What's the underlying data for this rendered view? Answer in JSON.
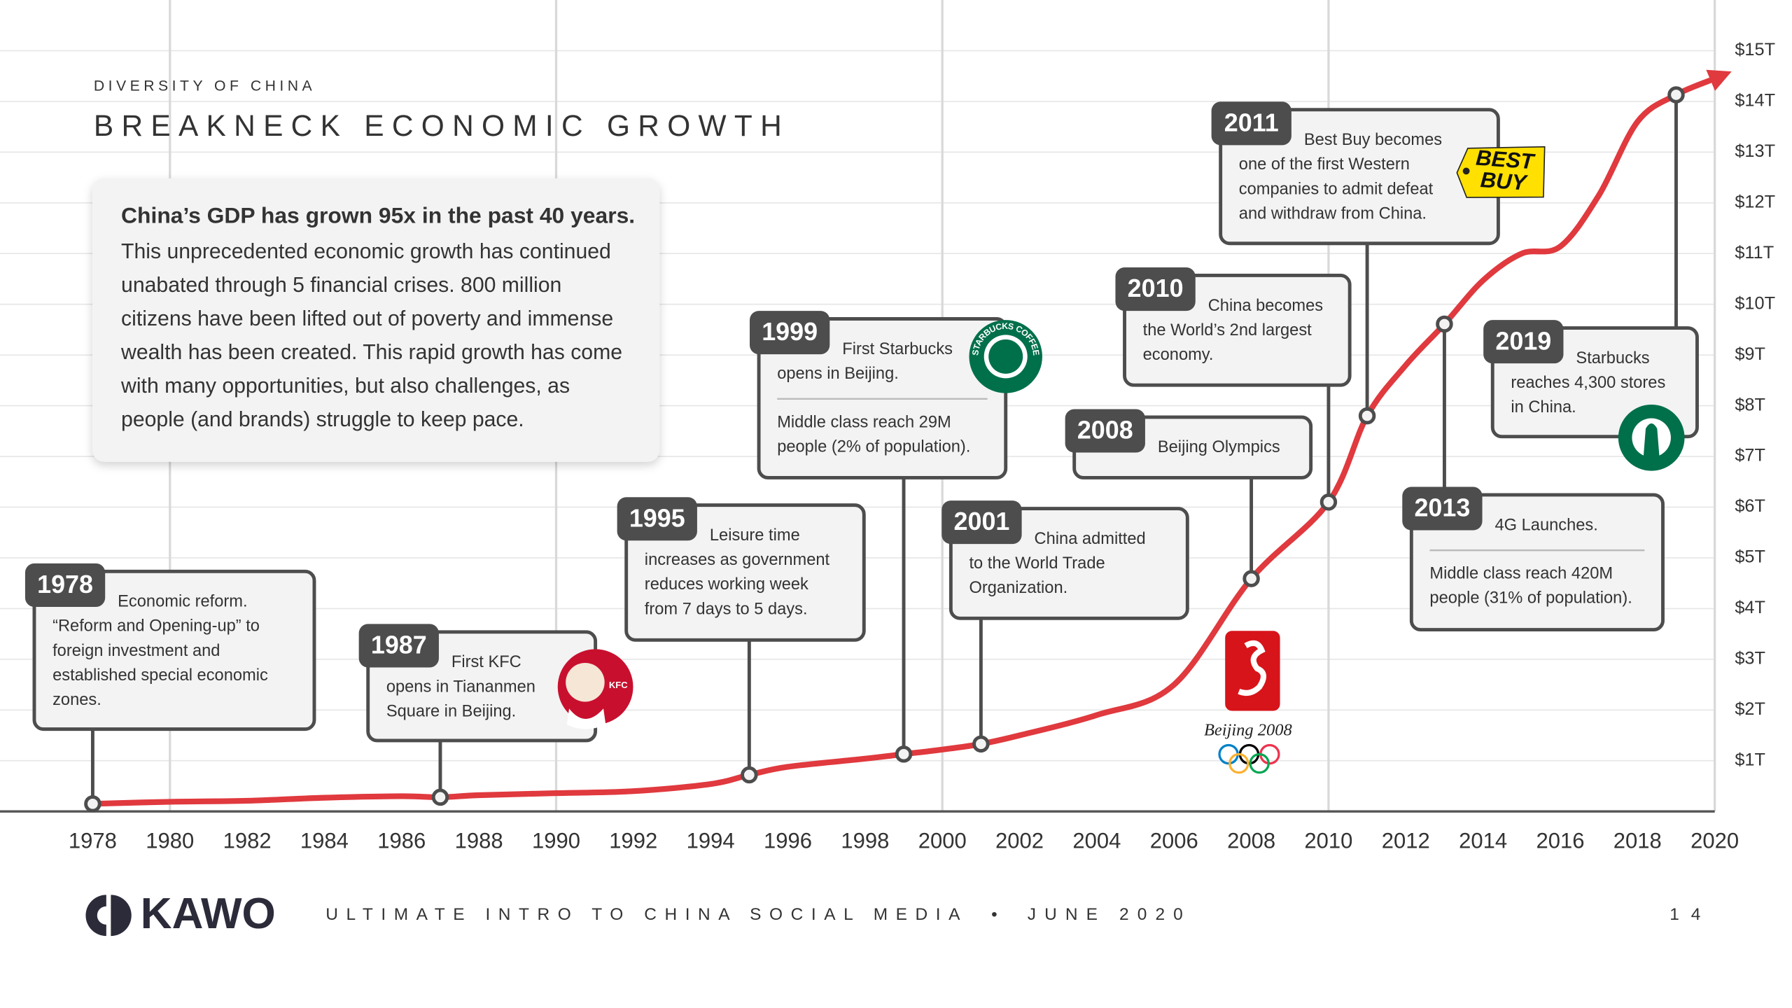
{
  "chart_data": {
    "type": "line",
    "subtitle": "DIVERSITY OF CHINA",
    "title": "BREAKNECK ECONOMIC GROWTH",
    "x": [
      1978,
      1980,
      1982,
      1984,
      1986,
      1987,
      1988,
      1990,
      1992,
      1994,
      1995,
      1996,
      1998,
      1999,
      2000,
      2001,
      2002,
      2004,
      2006,
      2008,
      2010,
      2011,
      2012,
      2013,
      2014,
      2015,
      2016,
      2017,
      2018,
      2019,
      2020
    ],
    "values": [
      0.15,
      0.19,
      0.21,
      0.27,
      0.3,
      0.28,
      0.32,
      0.36,
      0.4,
      0.54,
      0.72,
      0.88,
      1.04,
      1.13,
      1.22,
      1.33,
      1.5,
      1.9,
      2.5,
      4.59,
      6.1,
      7.8,
      8.8,
      9.61,
      10.47,
      11.0,
      11.14,
      12.15,
      13.6,
      14.13,
      14.45
    ],
    "color": "#e0393e",
    "xlim": [
      1975.6,
      2022
    ],
    "ylim": [
      0,
      16
    ],
    "xticks": [
      1978,
      1980,
      1982,
      1984,
      1986,
      1988,
      1990,
      1992,
      1994,
      1996,
      1998,
      2000,
      2002,
      2004,
      2006,
      2008,
      2010,
      2012,
      2014,
      2016,
      2018,
      2020
    ],
    "yticks": [
      {
        "value": 1,
        "label": "$1T"
      },
      {
        "value": 2,
        "label": "$2T"
      },
      {
        "value": 3,
        "label": "$3T"
      },
      {
        "value": 4,
        "label": "$4T"
      },
      {
        "value": 5,
        "label": "$5T"
      },
      {
        "value": 6,
        "label": "$6T"
      },
      {
        "value": 7,
        "label": "$7T"
      },
      {
        "value": 8,
        "label": "$8T"
      },
      {
        "value": 9,
        "label": "$9T"
      },
      {
        "value": 10,
        "label": "$10T"
      },
      {
        "value": 11,
        "label": "$11T"
      },
      {
        "value": 12,
        "label": "$12T"
      },
      {
        "value": 13,
        "label": "$13T"
      },
      {
        "value": 14,
        "label": "$14T"
      },
      {
        "value": 15,
        "label": "$15T"
      }
    ],
    "grid": true,
    "xgrid": [
      1980,
      1990,
      2000,
      2010,
      2020
    ],
    "events": [
      {
        "year": 1978,
        "text": [
          "Economic reform.",
          "“Reform and Opening-up” to",
          "foreign investment and",
          "established special economic",
          "zones."
        ]
      },
      {
        "year": 1987,
        "text": [
          "First KFC",
          "opens in Tiananmen",
          "Square in Beijing."
        ]
      },
      {
        "year": 1995,
        "text": [
          "Leisure time",
          "increases as government",
          "reduces working week",
          "from 7 days to 5 days."
        ]
      },
      {
        "year": 1999,
        "text": [
          "First Starbucks",
          "opens in Beijing."
        ],
        "note": [
          "Middle class reach 29M",
          "people (2% of population)."
        ]
      },
      {
        "year": 2001,
        "text": [
          "China admitted",
          "to the World Trade",
          "Organization."
        ]
      },
      {
        "year": 2008,
        "text": [
          "Beijing Olympics"
        ]
      },
      {
        "year": 2010,
        "text": [
          "China becomes",
          "the World’s 2nd largest",
          "economy."
        ]
      },
      {
        "year": 2011,
        "text": [
          "Best Buy becomes",
          "one of the first Western",
          "companies to admit defeat",
          "and withdraw from China."
        ]
      },
      {
        "year": 2013,
        "text": [
          "4G Launches."
        ],
        "note": [
          "Middle class reach 420M",
          "people (31% of population)."
        ]
      },
      {
        "year": 2019,
        "text": [
          "Starbucks",
          "reaches 4,300 stores",
          "in China."
        ]
      }
    ]
  },
  "summary": {
    "heading": "China’s GDP has grown 95x in the past 40 years.",
    "lines": [
      "This unprecedented economic growth has continued",
      "unabated through 5 financial crises. 800 million",
      "citizens have been lifted out of poverty and immense",
      "wealth has been created. This rapid growth has come",
      "with many opportunities, but also challenges, as",
      "people (and brands) struggle to keep pace."
    ]
  },
  "logos": {
    "kfc": "KFC",
    "starbucks": "STARBUCKS COFFEE",
    "bestbuy": [
      "BEST",
      "BUY"
    ],
    "beijing": "Beijing 2008"
  },
  "footer": {
    "brand": "KAWO",
    "text": "ULTIMATE INTRO TO CHINA SOCIAL MEDIA",
    "separator": "•",
    "date": "JUNE 2020",
    "page": "14"
  }
}
